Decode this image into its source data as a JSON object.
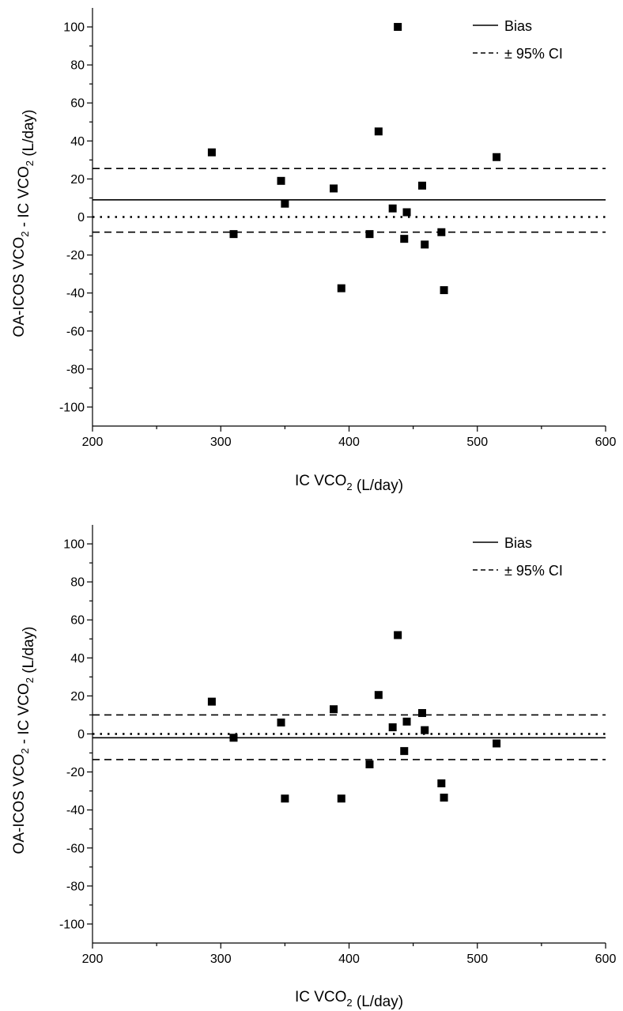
{
  "chart_data": [
    {
      "type": "scatter",
      "xlabel": "IC VCO₂ (L/day)",
      "ylabel": "OA-ICOS VCO₂ - IC VCO₂ (L/day)",
      "xlim": [
        200,
        600
      ],
      "ylim": [
        -110,
        110
      ],
      "x_ticks": [
        "200",
        "300",
        "400",
        "500",
        "600"
      ],
      "y_ticks": [
        "100",
        "80",
        "60",
        "40",
        "20",
        "0",
        "-20",
        "-40",
        "-60",
        "-80",
        "-100"
      ],
      "legend": {
        "position": "top-right",
        "entries": [
          {
            "label": "Bias",
            "style": "solid"
          },
          {
            "label": "± 95% CI",
            "style": "dashed"
          }
        ]
      },
      "lines": {
        "bias": 9,
        "ci_upper": 25.5,
        "ci_lower": -8,
        "zero": 0
      },
      "series": [
        {
          "points": [
            [
              293,
              34
            ],
            [
              310,
              -9
            ],
            [
              347,
              19
            ],
            [
              350,
              7
            ],
            [
              388,
              15
            ],
            [
              394,
              -37.5
            ],
            [
              416,
              -9
            ],
            [
              423,
              45
            ],
            [
              434,
              4.5
            ],
            [
              438,
              100
            ],
            [
              443,
              -11.5
            ],
            [
              445,
              2.5
            ],
            [
              457,
              16.5
            ],
            [
              459,
              -14.5
            ],
            [
              472,
              -8
            ],
            [
              474,
              -38.5
            ],
            [
              515,
              31.5
            ]
          ]
        }
      ]
    },
    {
      "type": "scatter",
      "xlabel": "IC VCO₂ (L/day)",
      "ylabel": "OA-ICOS VCO₂ - IC VCO₂ (L/day)",
      "xlim": [
        200,
        600
      ],
      "ylim": [
        -110,
        110
      ],
      "x_ticks": [
        "200",
        "300",
        "400",
        "500",
        "600"
      ],
      "y_ticks": [
        "100",
        "80",
        "60",
        "40",
        "20",
        "0",
        "-20",
        "-40",
        "-60",
        "-80",
        "-100"
      ],
      "legend": {
        "position": "top-right",
        "entries": [
          {
            "label": "Bias",
            "style": "solid"
          },
          {
            "label": "± 95% CI",
            "style": "dashed"
          }
        ]
      },
      "lines": {
        "bias": -2,
        "ci_upper": 10,
        "ci_lower": -13.5,
        "zero": 0
      },
      "series": [
        {
          "points": [
            [
              293,
              17
            ],
            [
              310,
              -2
            ],
            [
              347,
              6
            ],
            [
              350,
              -34
            ],
            [
              388,
              13
            ],
            [
              394,
              -34
            ],
            [
              416,
              -16
            ],
            [
              423,
              20.5
            ],
            [
              434,
              3.5
            ],
            [
              438,
              52
            ],
            [
              443,
              -9
            ],
            [
              445,
              6.5
            ],
            [
              457,
              11
            ],
            [
              459,
              2
            ],
            [
              472,
              -26
            ],
            [
              474,
              -33.5
            ],
            [
              515,
              -5
            ]
          ]
        }
      ]
    }
  ]
}
